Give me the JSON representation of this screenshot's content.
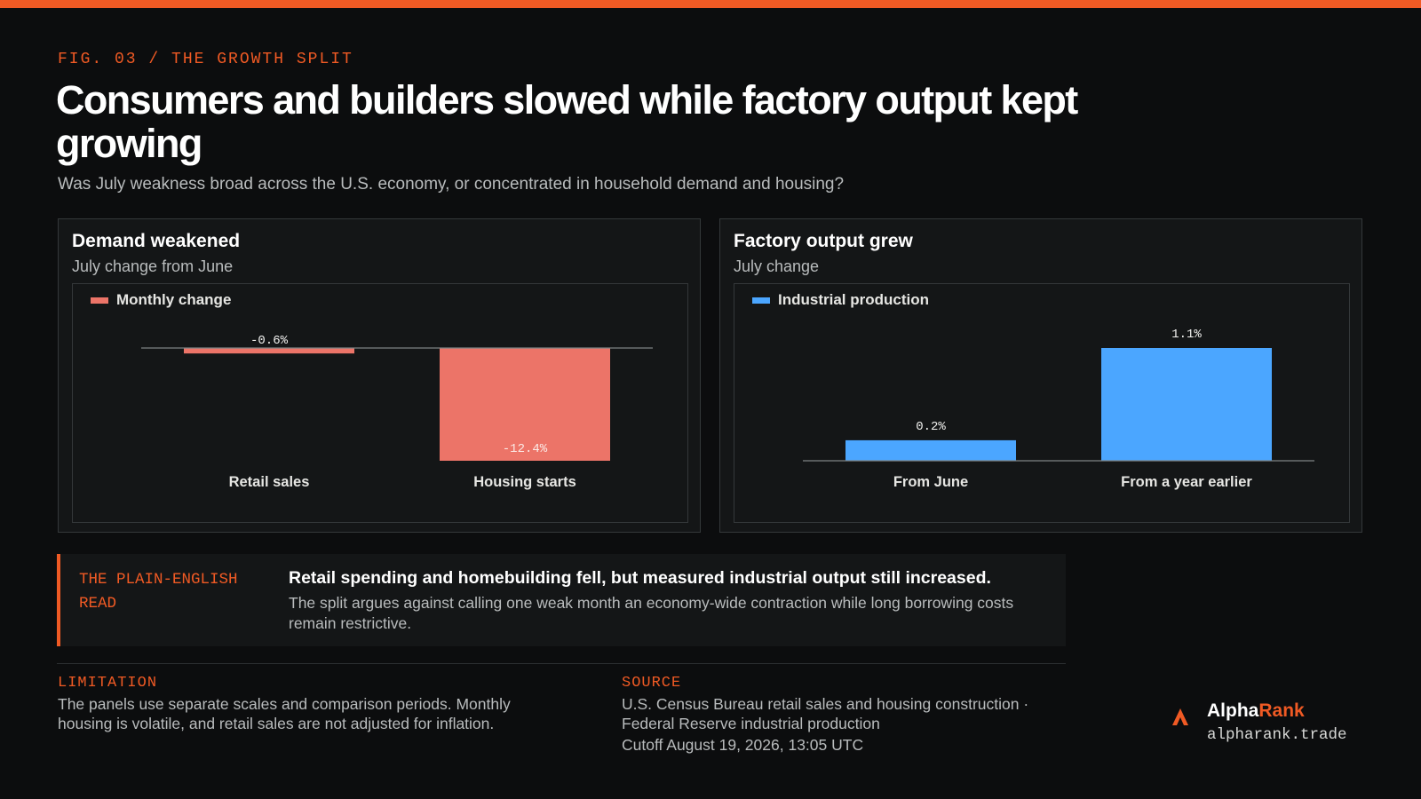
{
  "header": {
    "eyebrow": "FIG. 03 / THE GROWTH SPLIT",
    "title": "Consumers and builders slowed while factory output kept growing",
    "subtitle": "Was July weakness broad across the U.S. economy, or concentrated in household demand and housing?"
  },
  "colors": {
    "accent": "#f05a24",
    "demand_bar": "#ec7468",
    "factory_bar": "#4ba6ff",
    "background": "#0c0d0e",
    "panel": "#141617"
  },
  "chart_data": [
    {
      "type": "bar",
      "title": "Demand weakened",
      "subtitle": "July change from June",
      "categories": [
        "Retail sales",
        "Housing starts"
      ],
      "series": [
        {
          "name": "Monthly change",
          "values": [
            -0.6,
            -12.4
          ]
        }
      ],
      "value_labels": [
        "-0.6%",
        "-12.4%"
      ],
      "color": "#ec7468",
      "ylim": [
        -12.4,
        0
      ],
      "unit": "%",
      "grid": false,
      "legend_position": "top-left"
    },
    {
      "type": "bar",
      "title": "Factory output grew",
      "subtitle": "July change",
      "categories": [
        "From June",
        "From a year earlier"
      ],
      "series": [
        {
          "name": "Industrial production",
          "values": [
            0.2,
            1.1
          ]
        }
      ],
      "value_labels": [
        "0.2%",
        "1.1%"
      ],
      "color": "#4ba6ff",
      "ylim": [
        0,
        1.1
      ],
      "unit": "%",
      "grid": false,
      "legend_position": "top-left"
    }
  ],
  "callout": {
    "label": "THE PLAIN-ENGLISH READ",
    "headline": "Retail spending and homebuilding fell, but measured industrial output still increased.",
    "body": "The split argues against calling one weak month an economy-wide contraction while long borrowing costs remain restrictive."
  },
  "footer": {
    "limitation_label": "LIMITATION",
    "limitation_text": "The panels use separate scales and comparison periods. Monthly housing is volatile, and retail sales are not adjusted for inflation.",
    "source_label": "SOURCE",
    "source_text": "U.S. Census Bureau retail sales and housing construction · Federal Reserve industrial production",
    "cutoff": "Cutoff August 19, 2026, 13:05 UTC"
  },
  "brand": {
    "name_main": "Alpha",
    "name_accent": "Rank",
    "url": "alpharank.trade",
    "logo_icon": "alpharank-logo-icon"
  }
}
